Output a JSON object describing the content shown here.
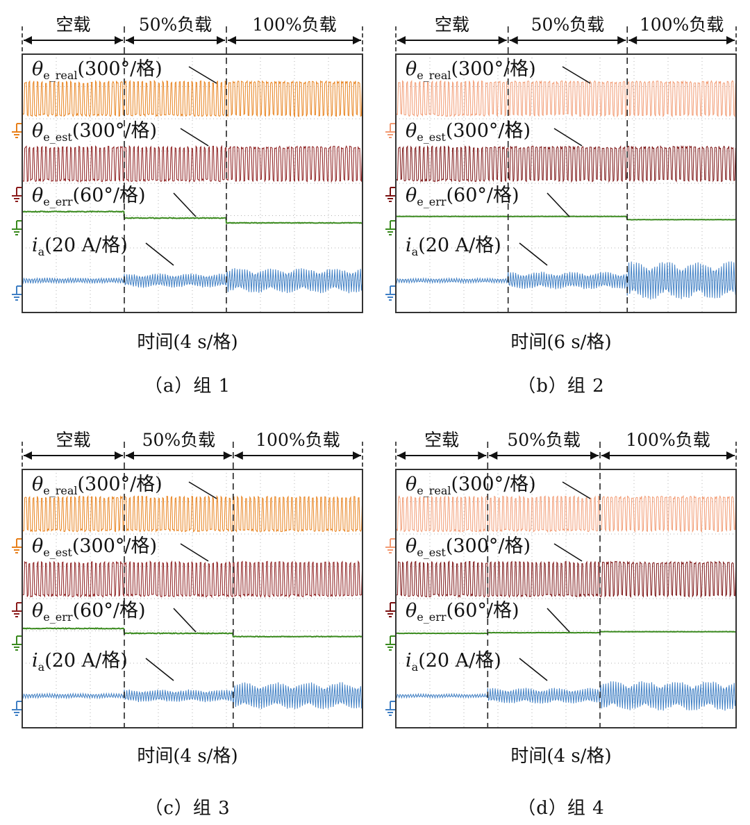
{
  "chart_data": [
    {
      "type": "line",
      "panel_id": "a",
      "caption": "（a）组 1",
      "xlabel": "时间(4 s/格)",
      "phases": [
        "空载",
        "50%负载",
        "100%负载"
      ],
      "phase_boundaries_div": [
        3,
        6
      ],
      "x_divisions": 10,
      "y_divisions": 8,
      "series": [
        {
          "name": "θe_real",
          "symbol": "θ",
          "sub": "e_real",
          "scale": "(300°/格)",
          "color": "#e8801a",
          "style": "sawtooth",
          "amplitude_div": [
            1.1,
            1.1,
            1.1
          ],
          "level_div": [
            0,
            0,
            0
          ]
        },
        {
          "name": "θe_est",
          "symbol": "θ",
          "sub": "e_est",
          "scale": "(300°/格)",
          "color": "#8b1a1a",
          "style": "sawtooth",
          "amplitude_div": [
            1.1,
            1.1,
            1.1
          ],
          "level_div": [
            0,
            0,
            0
          ]
        },
        {
          "name": "θe_err",
          "symbol": "θ",
          "sub": "e_err",
          "scale": "(60°/格)",
          "color": "#3a8a1e",
          "style": "step",
          "amplitude_div": [
            0.05,
            0.05,
            0.04
          ],
          "level_div": [
            0.2,
            0.0,
            -0.15
          ]
        },
        {
          "name": "ia",
          "symbol": "i",
          "sub": "a",
          "scale": "(20 A/格)",
          "color": "#3f7fc4",
          "style": "sine",
          "amplitude_div": [
            0.18,
            0.45,
            0.8
          ],
          "level_div": [
            0,
            0,
            0
          ]
        }
      ]
    },
    {
      "type": "line",
      "panel_id": "b",
      "caption": "（b）组 2",
      "xlabel": "时间(6 s/格)",
      "phases": [
        "空载",
        "50%负载",
        "100%负载"
      ],
      "phase_boundaries_div": [
        3.3,
        6.8
      ],
      "x_divisions": 10,
      "y_divisions": 8,
      "series": [
        {
          "name": "θe_real",
          "symbol": "θ",
          "sub": "e_real",
          "scale": "(300°/格)",
          "color": "#f29a72",
          "style": "sawtooth",
          "amplitude_div": [
            1.1,
            1.1,
            1.1
          ],
          "level_div": [
            0,
            0,
            0
          ]
        },
        {
          "name": "θe_est",
          "symbol": "θ",
          "sub": "e_est",
          "scale": "(300°/格)",
          "color": "#7a1010",
          "style": "sawtooth",
          "amplitude_div": [
            1.1,
            1.1,
            1.1
          ],
          "level_div": [
            0,
            0,
            0
          ]
        },
        {
          "name": "θe_err",
          "symbol": "θ",
          "sub": "e_err",
          "scale": "(60°/格)",
          "color": "#3a8a1e",
          "style": "step",
          "amplitude_div": [
            0.02,
            0.02,
            0.02
          ],
          "level_div": [
            0.05,
            0.05,
            -0.05
          ]
        },
        {
          "name": "ia",
          "symbol": "i",
          "sub": "a",
          "scale": "(20 A/格)",
          "color": "#3f7fc4",
          "style": "sine",
          "amplitude_div": [
            0.15,
            0.55,
            1.2
          ],
          "level_div": [
            0,
            0,
            0
          ]
        }
      ]
    },
    {
      "type": "line",
      "panel_id": "c",
      "caption": "（c）组 3",
      "xlabel": "时间(4 s/格)",
      "phases": [
        "空载",
        "50%负载",
        "100%负载"
      ],
      "phase_boundaries_div": [
        3,
        6.2
      ],
      "x_divisions": 10,
      "y_divisions": 8,
      "series": [
        {
          "name": "θe_real",
          "symbol": "θ",
          "sub": "e_real",
          "scale": "(300°/格)",
          "color": "#e8801a",
          "style": "sawtooth",
          "amplitude_div": [
            1.1,
            1.1,
            1.1
          ],
          "level_div": [
            0,
            0,
            0
          ]
        },
        {
          "name": "θe_est",
          "symbol": "θ",
          "sub": "e_est",
          "scale": "(300°/格)",
          "color": "#8b1a1a",
          "style": "sawtooth",
          "amplitude_div": [
            1.1,
            1.1,
            1.1
          ],
          "level_div": [
            0,
            0,
            0
          ]
        },
        {
          "name": "θe_err",
          "symbol": "θ",
          "sub": "e_err",
          "scale": "(60°/格)",
          "color": "#3a8a1e",
          "style": "step",
          "amplitude_div": [
            0.05,
            0.05,
            0.04
          ],
          "level_div": [
            0.15,
            0.0,
            -0.1
          ]
        },
        {
          "name": "ia",
          "symbol": "i",
          "sub": "a",
          "scale": "(20 A/格)",
          "color": "#3f7fc4",
          "style": "sine",
          "amplitude_div": [
            0.15,
            0.4,
            0.85
          ],
          "level_div": [
            0,
            0,
            0
          ]
        }
      ]
    },
    {
      "type": "line",
      "panel_id": "d",
      "caption": "（d）组 4",
      "xlabel": "时间(4 s/格)",
      "phases": [
        "空载",
        "50%负载",
        "100%负载"
      ],
      "phase_boundaries_div": [
        2.7,
        6.0
      ],
      "x_divisions": 10,
      "y_divisions": 8,
      "series": [
        {
          "name": "θe_real",
          "symbol": "θ",
          "sub": "e_real",
          "scale": "(300°/格)",
          "color": "#f29a72",
          "style": "sawtooth",
          "amplitude_div": [
            1.1,
            1.1,
            1.1
          ],
          "level_div": [
            0,
            0,
            0
          ]
        },
        {
          "name": "θe_est",
          "symbol": "θ",
          "sub": "e_est",
          "scale": "(300°/格)",
          "color": "#7a1010",
          "style": "sawtooth",
          "amplitude_div": [
            1.1,
            1.1,
            1.1
          ],
          "level_div": [
            0,
            0,
            0
          ]
        },
        {
          "name": "θe_err",
          "symbol": "θ",
          "sub": "e_err",
          "scale": "(60°/格)",
          "color": "#3a8a1e",
          "style": "step",
          "amplitude_div": [
            0.02,
            0.02,
            0.02
          ],
          "level_div": [
            0.0,
            0.02,
            0.05
          ]
        },
        {
          "name": "ia",
          "symbol": "i",
          "sub": "a",
          "scale": "(20 A/格)",
          "color": "#3f7fc4",
          "style": "sine",
          "amplitude_div": [
            0.12,
            0.5,
            0.95
          ],
          "level_div": [
            0,
            0,
            0
          ]
        }
      ]
    }
  ]
}
